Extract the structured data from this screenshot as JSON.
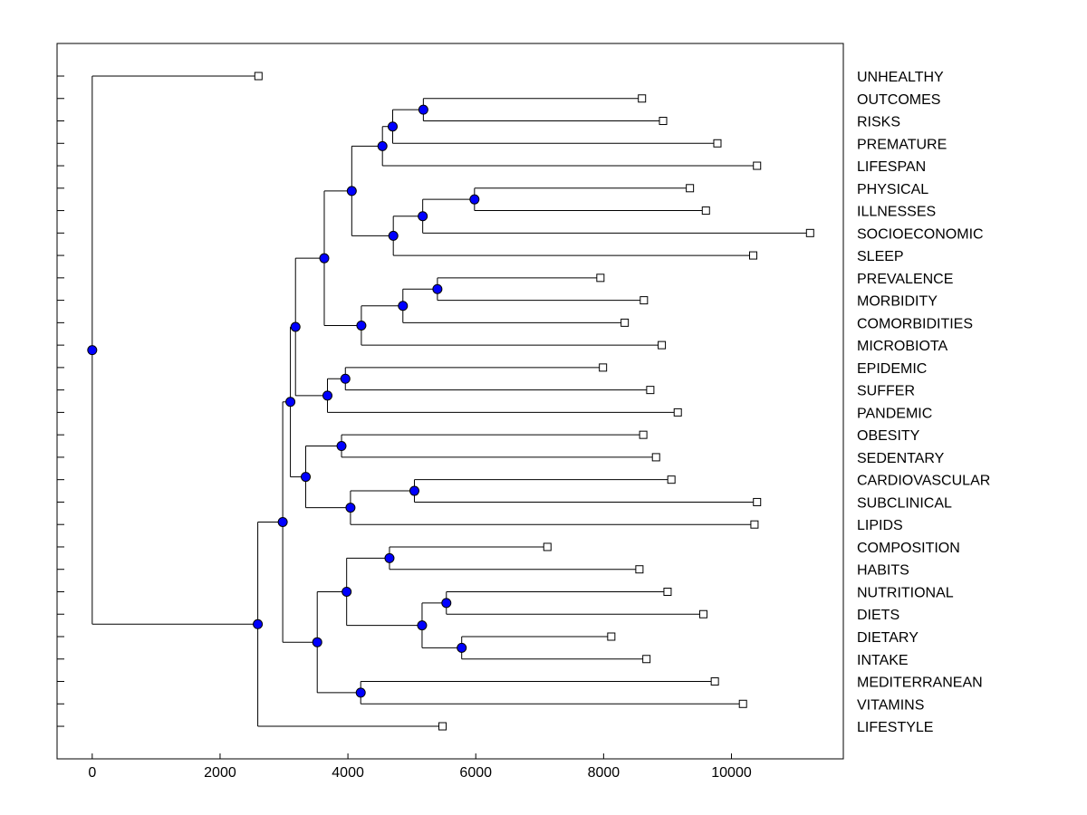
{
  "chart_data": {
    "type": "dendrogram",
    "orientation": "horizontal",
    "xlim": [
      -550,
      11750
    ],
    "xticks": [
      0,
      2000,
      4000,
      6000,
      8000,
      10000
    ],
    "xtick_labels": [
      "0",
      "2000",
      "4000",
      "6000",
      "8000",
      "10000"
    ],
    "colors": {
      "node_fill": "#0000ff",
      "line": "#000000",
      "leaf_fill": "#ffffff"
    },
    "leaves": [
      {
        "label": "UNHEALTHY",
        "x": 2600
      },
      {
        "label": "OUTCOMES",
        "x": 8600
      },
      {
        "label": "RISKS",
        "x": 8930
      },
      {
        "label": "PREMATURE",
        "x": 9780
      },
      {
        "label": "LIFESPAN",
        "x": 10400
      },
      {
        "label": "PHYSICAL",
        "x": 9350
      },
      {
        "label": "ILLNESSES",
        "x": 9600
      },
      {
        "label": "SOCIOECONOMIC",
        "x": 11230
      },
      {
        "label": "SLEEP",
        "x": 10340
      },
      {
        "label": "PREVALENCE",
        "x": 7950
      },
      {
        "label": "MORBIDITY",
        "x": 8630
      },
      {
        "label": "COMORBIDITIES",
        "x": 8330
      },
      {
        "label": "MICROBIOTA",
        "x": 8910
      },
      {
        "label": "EPIDEMIC",
        "x": 7990
      },
      {
        "label": "SUFFER",
        "x": 8730
      },
      {
        "label": "PANDEMIC",
        "x": 9160
      },
      {
        "label": "OBESITY",
        "x": 8620
      },
      {
        "label": "SEDENTARY",
        "x": 8820
      },
      {
        "label": "CARDIOVASCULAR",
        "x": 9060
      },
      {
        "label": "SUBCLINICAL",
        "x": 10400
      },
      {
        "label": "LIPIDS",
        "x": 10360
      },
      {
        "label": "COMPOSITION",
        "x": 7120
      },
      {
        "label": "HABITS",
        "x": 8560
      },
      {
        "label": "NUTRITIONAL",
        "x": 9000
      },
      {
        "label": "DIETS",
        "x": 9560
      },
      {
        "label": "DIETARY",
        "x": 8120
      },
      {
        "label": "INTAKE",
        "x": 8670
      },
      {
        "label": "MEDITERRANEAN",
        "x": 9740
      },
      {
        "label": "VITAMINS",
        "x": 10180
      },
      {
        "label": "LIFESTYLE",
        "x": 5480
      }
    ],
    "nodes": {
      "n1": {
        "x": 5180,
        "children": [
          "L1",
          "L2"
        ]
      },
      "n2": {
        "x": 4700,
        "children": [
          "n1",
          "L3"
        ]
      },
      "n3": {
        "x": 4540,
        "children": [
          "n2",
          "L4"
        ]
      },
      "n4": {
        "x": 5980,
        "children": [
          "L5",
          "L6"
        ]
      },
      "n5": {
        "x": 5170,
        "children": [
          "n4",
          "L7"
        ]
      },
      "n6": {
        "x": 4710,
        "children": [
          "n5",
          "L8"
        ]
      },
      "n7": {
        "x": 4060,
        "children": [
          "n3",
          "n6"
        ]
      },
      "n8": {
        "x": 5400,
        "children": [
          "L9",
          "L10"
        ]
      },
      "n9": {
        "x": 4860,
        "children": [
          "n8",
          "L11"
        ]
      },
      "n10": {
        "x": 4210,
        "children": [
          "n9",
          "L12"
        ]
      },
      "n11": {
        "x": 3630,
        "children": [
          "n7",
          "n10"
        ]
      },
      "n12": {
        "x": 3960,
        "children": [
          "L13",
          "L14"
        ]
      },
      "n13": {
        "x": 3680,
        "children": [
          "n12",
          "L15"
        ]
      },
      "n14": {
        "x": 3180,
        "children": [
          "n11",
          "n13"
        ]
      },
      "n15": {
        "x": 3900,
        "children": [
          "L16",
          "L17"
        ]
      },
      "n16": {
        "x": 5040,
        "children": [
          "L18",
          "L19"
        ]
      },
      "n17": {
        "x": 4040,
        "children": [
          "n16",
          "L20"
        ]
      },
      "n18": {
        "x": 3340,
        "children": [
          "n15",
          "n17"
        ]
      },
      "n19": {
        "x": 3100,
        "children": [
          "n14",
          "n18"
        ]
      },
      "n20": {
        "x": 4650,
        "children": [
          "L21",
          "L22"
        ]
      },
      "n21": {
        "x": 5540,
        "children": [
          "L23",
          "L24"
        ]
      },
      "n22": {
        "x": 5780,
        "children": [
          "L25",
          "L26"
        ]
      },
      "n23": {
        "x": 5160,
        "children": [
          "n21",
          "n22"
        ]
      },
      "n24": {
        "x": 3980,
        "children": [
          "n20",
          "n23"
        ]
      },
      "n25": {
        "x": 4200,
        "children": [
          "L27",
          "L28"
        ]
      },
      "n26": {
        "x": 3520,
        "children": [
          "n24",
          "n25"
        ]
      },
      "n27": {
        "x": 2980,
        "children": [
          "n19",
          "n26"
        ]
      },
      "n28": {
        "x": 2590,
        "children": [
          "n27",
          "L29"
        ]
      },
      "n29": {
        "x": 0,
        "children": [
          "L0",
          "n28"
        ]
      }
    },
    "root": "n29"
  }
}
